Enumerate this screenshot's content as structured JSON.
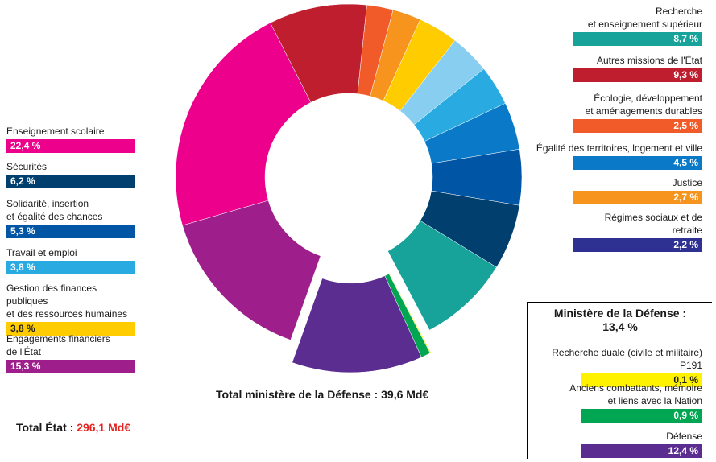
{
  "chart_data": {
    "type": "pie",
    "center_label": "",
    "slices": [
      {
        "label": "Écologie, développement\net aménagements durables",
        "value": 2.5,
        "color": "#f15a29"
      },
      {
        "label": "Justice",
        "value": 2.7,
        "color": "#f7941d"
      },
      {
        "label": "Gestion des finances publiques\net des ressources humaines",
        "value": 3.8,
        "color": "#ffcc00"
      },
      {
        "label": "Recherche duale",
        "value": 3.8,
        "color": "#87cef0"
      },
      {
        "label": "Travail et emploi",
        "value": 3.8,
        "color": "#29abe2"
      },
      {
        "label": "Égalité des territoires, logement et ville",
        "value": 4.5,
        "color": "#0a7ac8"
      },
      {
        "label": "Solidarité, insertion\net égalité des chances",
        "value": 5.3,
        "color": "#0055a5"
      },
      {
        "label": "Sécurités",
        "value": 6.2,
        "color": "#003f6e"
      },
      {
        "label": "Recherche\net enseignement supérieur",
        "value": 8.7,
        "color": "#17a39a"
      },
      {
        "label": "Ministère de la Défense",
        "value": 13.4,
        "color": "#5b2d90",
        "exploded": true
      },
      {
        "label": "Engagements financiers\nde l'État",
        "value": 15.3,
        "color": "#9e1f8c"
      },
      {
        "label": "Enseignement scolaire",
        "value": 22.4,
        "color": "#ec008c"
      },
      {
        "label": "Autres missions de l'État",
        "value": 9.3,
        "color": "#be1e2d"
      }
    ],
    "defense_breakdown": [
      {
        "label": "Recherche duale (civile et militaire) P191",
        "value": 0.1,
        "color": "#fff200"
      },
      {
        "label": "Anciens combattants, mémoire\net liens avec la Nation",
        "value": 0.9,
        "color": "#00a651"
      },
      {
        "label": "Défense",
        "value": 12.4,
        "color": "#5b2d90"
      }
    ]
  },
  "legend_left": [
    {
      "label": "Enseignement scolaire",
      "value": "22,4 %",
      "color": "#ec008c"
    },
    {
      "label": "Sécurités",
      "value": "6,2 %",
      "color": "#003f6e"
    },
    {
      "label": "Solidarité, insertion\net égalité des chances",
      "value": "5,3 %",
      "color": "#0055a5"
    },
    {
      "label": "Travail et emploi",
      "value": "3,8 %",
      "color": "#29abe2"
    },
    {
      "label": "Gestion des finances publiques\net des ressources humaines",
      "value": "3,8 %",
      "color": "#ffcc00"
    },
    {
      "label": "Engagements financiers\nde l'État",
      "value": "15,3 %",
      "color": "#9e1f8c"
    }
  ],
  "legend_right": [
    {
      "label": "Recherche\net enseignement supérieur",
      "value": "8,7 %",
      "color": "#17a39a"
    },
    {
      "label": "Autres missions de l'État",
      "value": "9,3 %",
      "color": "#be1e2d"
    },
    {
      "label": "Écologie, développement\net aménagements durables",
      "value": "2,5 %",
      "color": "#f15a29"
    },
    {
      "label": "Égalité des territoires, logement et ville",
      "value": "4,5 %",
      "color": "#0a7ac8"
    },
    {
      "label": "Justice",
      "value": "2,7 %",
      "color": "#f7941d"
    },
    {
      "label": "Régimes sociaux et de retraite",
      "value": "2,2 %",
      "color": "#2e3192"
    }
  ],
  "defense_box": {
    "title": "Ministère de la Défense :\n13,4 %",
    "items": [
      {
        "label": "Recherche duale (civile et militaire) P191",
        "value": "0,1 %",
        "color": "#fff200",
        "text_color": "#1a1a1a"
      },
      {
        "label": "Anciens combattants, mémoire\net liens avec la Nation",
        "value": "0,9 %",
        "color": "#00a651",
        "text_color": "#ffffff"
      },
      {
        "label": "Défense",
        "value": "12,4 %",
        "color": "#5b2d90",
        "text_color": "#ffffff"
      }
    ]
  },
  "totals": {
    "defense": "Total ministère de la Défense : 39,6 Md€",
    "etat_label": "Total État : ",
    "etat_amount": "296,1 Md€"
  }
}
